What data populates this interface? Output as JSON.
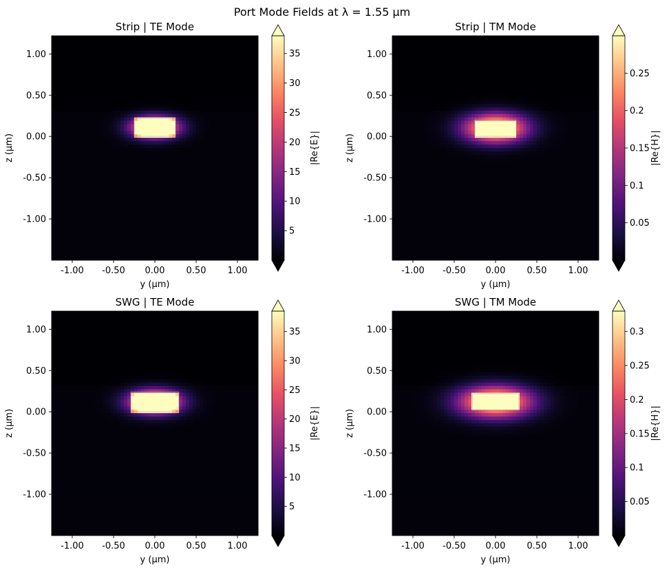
{
  "figure": {
    "suptitle": "Port Mode Fields at λ = 1.55 µm"
  },
  "colormap": [
    "#000004",
    "#1c1044",
    "#4f127b",
    "#812581",
    "#b5367a",
    "#e55064",
    "#fb8761",
    "#fec287",
    "#fcfdbf"
  ],
  "chart_data": [
    {
      "type": "heatmap",
      "title": "Strip | TE Mode",
      "xlabel": "y (µm)",
      "ylabel": "z (µm)",
      "xlim": [
        -1.25,
        1.25
      ],
      "ylim": [
        -1.5,
        1.22
      ],
      "xticks": [
        "-1.00",
        "-0.50",
        "0.00",
        "0.50",
        "1.00"
      ],
      "yticks": [
        "1.00",
        "0.50",
        "0.00",
        "-0.50",
        "-1.00"
      ],
      "colorbar": {
        "label": "|Re{E}|",
        "min": 0,
        "max": 38,
        "ticks": [
          5,
          10,
          15,
          20,
          25,
          30,
          35
        ],
        "extend": "both"
      },
      "field": {
        "peak_y": 0.0,
        "peak_z": 0.11,
        "spread_y": 0.2,
        "spread_z": 0.09,
        "core_width": 0.5,
        "core_height": 0.22,
        "substrate_z": 0.3
      }
    },
    {
      "type": "heatmap",
      "title": "Strip | TM Mode",
      "xlabel": "y (µm)",
      "ylabel": "z (µm)",
      "xlim": [
        -1.25,
        1.25
      ],
      "ylim": [
        -1.5,
        1.22
      ],
      "xticks": [
        "-1.00",
        "-0.50",
        "0.00",
        "0.50",
        "1.00"
      ],
      "yticks": [
        "1.00",
        "0.50",
        "0.00",
        "-0.50",
        "-1.00"
      ],
      "colorbar": {
        "label": "|Re{H}|",
        "min": 0,
        "max": 0.3,
        "ticks": [
          0.05,
          0.1,
          0.15,
          0.2,
          0.25
        ],
        "extend": "both"
      },
      "field": {
        "peak_y": 0.0,
        "peak_z": 0.1,
        "spread_y": 0.26,
        "spread_z": 0.12,
        "core_width": 0.5,
        "core_height": 0.2,
        "substrate_z": 0.3
      }
    },
    {
      "type": "heatmap",
      "title": "SWG | TE Mode",
      "xlabel": "y (µm)",
      "ylabel": "z (µm)",
      "xlim": [
        -1.25,
        1.25
      ],
      "ylim": [
        -1.5,
        1.22
      ],
      "xticks": [
        "-1.00",
        "-0.50",
        "0.00",
        "0.50",
        "1.00"
      ],
      "yticks": [
        "1.00",
        "0.50",
        "0.00",
        "-0.50",
        "-1.00"
      ],
      "colorbar": {
        "label": "|Re{E}|",
        "min": 0,
        "max": 38.5,
        "ticks": [
          5,
          10,
          15,
          20,
          25,
          30,
          35
        ],
        "extend": "both"
      },
      "field": {
        "peak_y": 0.0,
        "peak_z": 0.12,
        "spread_y": 0.22,
        "spread_z": 0.1,
        "core_width": 0.58,
        "core_height": 0.24,
        "substrate_z": 0.3
      }
    },
    {
      "type": "heatmap",
      "title": "SWG | TM Mode",
      "xlabel": "y (µm)",
      "ylabel": "z (µm)",
      "xlim": [
        -1.25,
        1.25
      ],
      "ylim": [
        -1.5,
        1.22
      ],
      "xticks": [
        "-1.00",
        "-0.50",
        "0.00",
        "0.50",
        "1.00"
      ],
      "yticks": [
        "1.00",
        "0.50",
        "0.00",
        "-0.50",
        "-1.00"
      ],
      "colorbar": {
        "label": "|Re{H}|",
        "min": 0,
        "max": 0.33,
        "ticks": [
          0.05,
          0.1,
          0.15,
          0.2,
          0.25,
          0.3
        ],
        "extend": "both"
      },
      "field": {
        "peak_y": 0.0,
        "peak_z": 0.12,
        "spread_y": 0.3,
        "spread_z": 0.13,
        "core_width": 0.56,
        "core_height": 0.2,
        "substrate_z": 0.3
      }
    }
  ]
}
